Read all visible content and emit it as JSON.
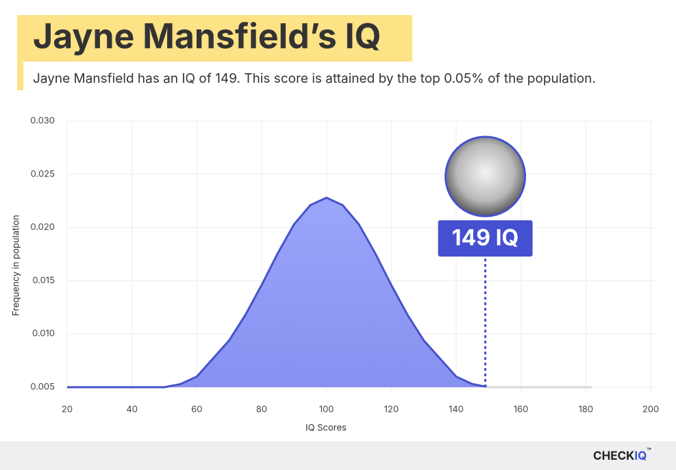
{
  "chart_data": {
    "type": "area",
    "title": "Jayne Mansfield’s IQ",
    "subtitle": "Jayne Mansfield has an IQ of 149. This score is attained by the top 0.05% of the population.",
    "x_label": "IQ Scores",
    "y_label": "Frequency in population",
    "xlim": [
      20,
      200
    ],
    "xticks": [
      20,
      40,
      60,
      80,
      100,
      120,
      140,
      160,
      180,
      200
    ],
    "ylim": [
      0.005,
      0.03
    ],
    "yticks": [
      0.005,
      {
        "value": 0.01,
        "label": "0.010"
      },
      0.015,
      {
        "value": 0.02,
        "label": "0.020"
      },
      0.025,
      {
        "value": 0.03,
        "label": "0.030"
      }
    ],
    "grid": true,
    "series": [
      {
        "color": "#4652c8",
        "x": [
          20,
          25,
          30,
          35,
          40,
          45,
          50,
          55,
          60,
          65,
          70,
          75,
          80,
          85,
          90,
          95,
          100,
          105,
          110,
          115,
          120,
          125,
          130,
          135,
          140,
          145,
          150
        ],
        "values": [
          0.005,
          0.005,
          0.005,
          0.005,
          0.005,
          0.005,
          0.005,
          0.0053,
          0.006,
          0.0077,
          0.0094,
          0.0118,
          0.0146,
          0.0176,
          0.0203,
          0.0221,
          0.0228,
          0.0221,
          0.0203,
          0.0176,
          0.0146,
          0.0118,
          0.0094,
          0.0077,
          0.006,
          0.0053,
          0.005
        ]
      },
      {
        "color": "#d9d9d9",
        "x": [
          149,
          182
        ],
        "values": [
          0.005,
          0.005
        ]
      }
    ],
    "annotation": {
      "x": 149,
      "label": "149 IQ"
    },
    "footer": {
      "brand": "CHECK",
      "brand_accent": "IQ",
      "mark": "™"
    }
  }
}
